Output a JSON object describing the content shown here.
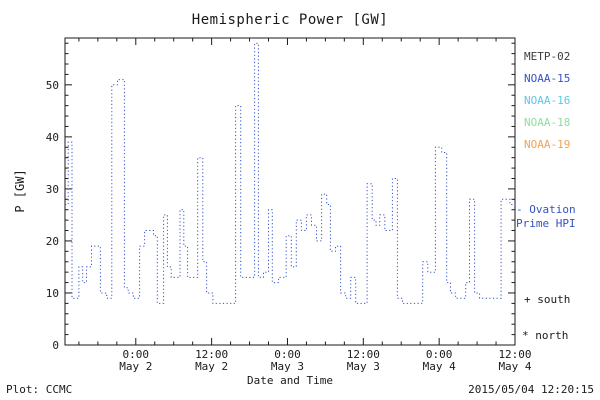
{
  "title": "Hemispheric Power [GW]",
  "colors": {
    "axis": "#1a1a1a",
    "text": "#1a1a1a",
    "line": "#3352c5",
    "metp02": "#3c3c3c",
    "noaa15": "#3352c5",
    "noaa16": "#5bc8e8",
    "noaa18": "#8ede9e",
    "noaa19": "#f2a254",
    "annotation": "#3352c5"
  },
  "legend": [
    {
      "label": "METP-02",
      "color_key": "metp02"
    },
    {
      "label": "NOAA-15",
      "color_key": "noaa15"
    },
    {
      "label": "NOAA-16",
      "color_key": "noaa16"
    },
    {
      "label": "NOAA-18",
      "color_key": "noaa18"
    },
    {
      "label": "NOAA-19",
      "color_key": "noaa19"
    }
  ],
  "annotations": {
    "ovation_line1": "- Ovation",
    "ovation_line2": "Prime HPI",
    "south": "+ south",
    "north": "* north"
  },
  "footer": {
    "left": "Plot: CCMC",
    "right": "2015/05/04 12:20:15"
  },
  "chart_data": {
    "type": "line",
    "style": "dotted-step",
    "title": "Hemispheric Power [GW]",
    "xlabel": "Date and Time",
    "ylabel": "P [GW]",
    "ylim": [
      0,
      59
    ],
    "yticks": [
      0,
      10,
      20,
      30,
      40,
      50
    ],
    "xlim_hours": [
      -11.2,
      60
    ],
    "xticks": [
      {
        "hours": 0,
        "time": "0:00",
        "date": "May 2"
      },
      {
        "hours": 12,
        "time": "12:00",
        "date": "May 2"
      },
      {
        "hours": 24,
        "time": "0:00",
        "date": "May 3"
      },
      {
        "hours": 36,
        "time": "12:00",
        "date": "May 3"
      },
      {
        "hours": 48,
        "time": "0:00",
        "date": "May 4"
      },
      {
        "hours": 60,
        "time": "12:00",
        "date": "May 4"
      }
    ],
    "grid": false,
    "legend_position": "right-outside",
    "series": [
      {
        "name": "Ovation Prime HPI",
        "color": "#3352c5",
        "units": "GW",
        "x_units": "hours from 2015-05-02 00:00",
        "points": [
          [
            -11.2,
            27
          ],
          [
            -10.7,
            39
          ],
          [
            -10.1,
            9
          ],
          [
            -9.0,
            15
          ],
          [
            -8.4,
            12
          ],
          [
            -7.8,
            15
          ],
          [
            -7.0,
            19
          ],
          [
            -5.6,
            10
          ],
          [
            -4.6,
            9
          ],
          [
            -3.8,
            50
          ],
          [
            -2.9,
            51
          ],
          [
            -1.8,
            11
          ],
          [
            -1.2,
            10
          ],
          [
            -0.4,
            9
          ],
          [
            0.6,
            19
          ],
          [
            1.4,
            22
          ],
          [
            2.8,
            21
          ],
          [
            3.4,
            8
          ],
          [
            4.4,
            25
          ],
          [
            5.0,
            15
          ],
          [
            5.6,
            13
          ],
          [
            7.0,
            26
          ],
          [
            7.6,
            19
          ],
          [
            8.2,
            13
          ],
          [
            9.8,
            36
          ],
          [
            10.6,
            16
          ],
          [
            11.2,
            10
          ],
          [
            12.2,
            8
          ],
          [
            15.8,
            46
          ],
          [
            16.6,
            13
          ],
          [
            18.8,
            58
          ],
          [
            19.4,
            13
          ],
          [
            20.2,
            14
          ],
          [
            21.0,
            26
          ],
          [
            21.6,
            12
          ],
          [
            22.6,
            13
          ],
          [
            23.8,
            21
          ],
          [
            24.6,
            15
          ],
          [
            25.4,
            24
          ],
          [
            26.2,
            22
          ],
          [
            27.0,
            25
          ],
          [
            27.8,
            23
          ],
          [
            28.6,
            20
          ],
          [
            29.4,
            29
          ],
          [
            30.2,
            27
          ],
          [
            30.8,
            18
          ],
          [
            31.6,
            19
          ],
          [
            32.4,
            10
          ],
          [
            33.2,
            9
          ],
          [
            34.0,
            13
          ],
          [
            34.8,
            8
          ],
          [
            36.6,
            31
          ],
          [
            37.4,
            24
          ],
          [
            38.0,
            23
          ],
          [
            38.6,
            25
          ],
          [
            39.4,
            22
          ],
          [
            40.6,
            32
          ],
          [
            41.4,
            9
          ],
          [
            42.2,
            8
          ],
          [
            45.4,
            16
          ],
          [
            46.2,
            14
          ],
          [
            47.4,
            38
          ],
          [
            48.4,
            37
          ],
          [
            49.2,
            12
          ],
          [
            49.8,
            10
          ],
          [
            50.6,
            9
          ],
          [
            52.2,
            12
          ],
          [
            52.8,
            28
          ],
          [
            53.6,
            10
          ],
          [
            54.4,
            9
          ],
          [
            57.8,
            28
          ],
          [
            59.2,
            27
          ]
        ]
      }
    ]
  }
}
